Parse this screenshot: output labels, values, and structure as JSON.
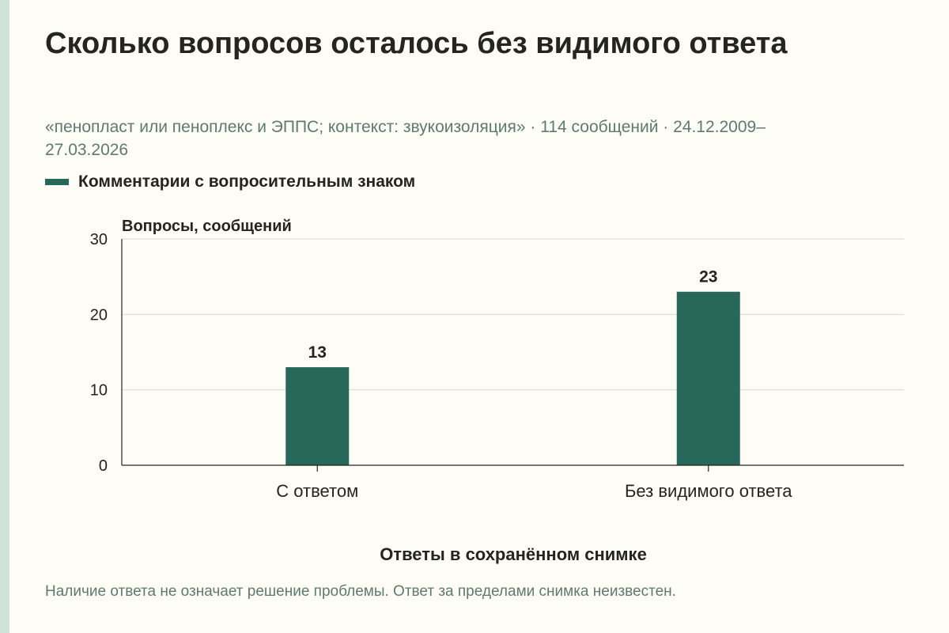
{
  "chart_data": {
    "type": "bar",
    "title": "Сколько вопросов осталось без видимого ответа",
    "subtitle": "«пенопласт или пеноплекс и ЭППС; контекст: звукоизоляция» · 114 сообщений · 24.12.2009–27.03.2026",
    "categories": [
      "С ответом",
      "Без видимого ответа"
    ],
    "series": [
      {
        "name": "Комментарии с вопросительным знаком",
        "values": [
          13,
          23
        ],
        "color": "#27685a"
      }
    ],
    "xlabel": "Ответы в сохранённом снимке",
    "ylabel": "Вопросы, сообщений",
    "ylim": [
      0,
      30
    ],
    "yticks": [
      0,
      10,
      20,
      30
    ],
    "grid": true,
    "legend_position": "top-left",
    "footnote": "Наличие ответа не означает решение проблемы. Ответ за пределами снимка неизвестен."
  }
}
